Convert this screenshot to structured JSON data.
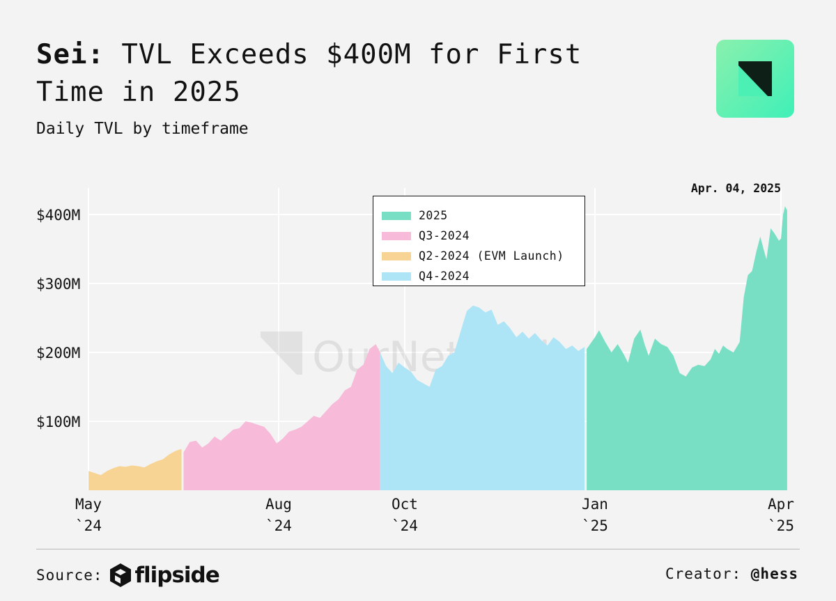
{
  "header": {
    "title_brand": "Sei:",
    "title_rest": "TVL Exceeds $400M for First Time in 2025",
    "subtitle": "Daily TVL by timeframe"
  },
  "watermark": "OurNetwork",
  "footer": {
    "source_label": "Source:",
    "source_name": "flipside",
    "creator_label": "Creator:",
    "creator_handle": "@hess"
  },
  "colors": {
    "q2_2024": "#f7d494",
    "q3_2024": "#f7bad9",
    "q4_2024": "#ade5f6",
    "y2025": "#78dfc5",
    "background": "#f3f3f3",
    "logo_green": "#5cf0b0"
  },
  "chart_data": {
    "type": "area",
    "title": "Sei: TVL Exceeds $400M for First Time in 2025",
    "subtitle": "Daily TVL by timeframe",
    "xlabel": "",
    "ylabel": "",
    "ylim": [
      0,
      420
    ],
    "y_ticks": [
      {
        "value": 100,
        "label": "$100M"
      },
      {
        "value": 200,
        "label": "$200M"
      },
      {
        "value": 300,
        "label": "$300M"
      },
      {
        "value": 400,
        "label": "$400M"
      }
    ],
    "x_ticks": [
      {
        "date": "2024-05-01",
        "label1": "May",
        "label2": "`24"
      },
      {
        "date": "2024-08-01",
        "label1": "Aug",
        "label2": "`24"
      },
      {
        "date": "2024-10-01",
        "label1": "Oct",
        "label2": "`24"
      },
      {
        "date": "2025-01-01",
        "label1": "Jan",
        "label2": "`25"
      },
      {
        "date": "2025-04-01",
        "label1": "Apr",
        "label2": "`25"
      }
    ],
    "x_range": [
      "2024-05-01",
      "2025-04-04"
    ],
    "grid": true,
    "legend_position": "top-center",
    "annotation": {
      "date": "2025-04-04",
      "text": "Apr. 04, 2025"
    },
    "series": [
      {
        "name": "2025",
        "color": "#78dfc5",
        "points": [
          [
            "2024-12-28",
            205
          ],
          [
            "2025-01-01",
            222
          ],
          [
            "2025-01-03",
            232
          ],
          [
            "2025-01-06",
            215
          ],
          [
            "2025-01-09",
            200
          ],
          [
            "2025-01-12",
            212
          ],
          [
            "2025-01-15",
            197
          ],
          [
            "2025-01-17",
            185
          ],
          [
            "2025-01-20",
            220
          ],
          [
            "2025-01-23",
            233
          ],
          [
            "2025-01-25",
            212
          ],
          [
            "2025-01-27",
            195
          ],
          [
            "2025-01-30",
            220
          ],
          [
            "2025-02-02",
            212
          ],
          [
            "2025-02-05",
            208
          ],
          [
            "2025-02-08",
            195
          ],
          [
            "2025-02-11",
            170
          ],
          [
            "2025-02-14",
            165
          ],
          [
            "2025-02-17",
            178
          ],
          [
            "2025-02-20",
            182
          ],
          [
            "2025-02-23",
            180
          ],
          [
            "2025-02-26",
            190
          ],
          [
            "2025-02-28",
            205
          ],
          [
            "2025-03-02",
            198
          ],
          [
            "2025-03-04",
            210
          ],
          [
            "2025-03-06",
            205
          ],
          [
            "2025-03-09",
            200
          ],
          [
            "2025-03-12",
            215
          ],
          [
            "2025-03-14",
            280
          ],
          [
            "2025-03-16",
            312
          ],
          [
            "2025-03-18",
            318
          ],
          [
            "2025-03-20",
            345
          ],
          [
            "2025-03-22",
            368
          ],
          [
            "2025-03-24",
            345
          ],
          [
            "2025-03-25",
            335
          ],
          [
            "2025-03-27",
            380
          ],
          [
            "2025-03-29",
            372
          ],
          [
            "2025-03-31",
            362
          ],
          [
            "2025-04-01",
            365
          ],
          [
            "2025-04-02",
            400
          ],
          [
            "2025-04-03",
            412
          ],
          [
            "2025-04-04",
            406
          ]
        ]
      },
      {
        "name": "Q3-2024",
        "color": "#f7bad9",
        "points": [
          [
            "2024-06-16",
            55
          ],
          [
            "2024-06-19",
            70
          ],
          [
            "2024-06-22",
            72
          ],
          [
            "2024-06-25",
            62
          ],
          [
            "2024-06-28",
            68
          ],
          [
            "2024-07-01",
            78
          ],
          [
            "2024-07-04",
            72
          ],
          [
            "2024-07-07",
            80
          ],
          [
            "2024-07-10",
            88
          ],
          [
            "2024-07-13",
            90
          ],
          [
            "2024-07-16",
            100
          ],
          [
            "2024-07-19",
            98
          ],
          [
            "2024-07-22",
            95
          ],
          [
            "2024-07-25",
            92
          ],
          [
            "2024-07-28",
            82
          ],
          [
            "2024-07-31",
            68
          ],
          [
            "2024-08-03",
            75
          ],
          [
            "2024-08-06",
            85
          ],
          [
            "2024-08-09",
            88
          ],
          [
            "2024-08-12",
            92
          ],
          [
            "2024-08-15",
            100
          ],
          [
            "2024-08-18",
            108
          ],
          [
            "2024-08-21",
            105
          ],
          [
            "2024-08-24",
            115
          ],
          [
            "2024-08-27",
            125
          ],
          [
            "2024-08-30",
            132
          ],
          [
            "2024-09-02",
            145
          ],
          [
            "2024-09-05",
            150
          ],
          [
            "2024-09-08",
            175
          ],
          [
            "2024-09-11",
            182
          ],
          [
            "2024-09-14",
            205
          ],
          [
            "2024-09-17",
            212
          ],
          [
            "2024-09-19",
            200
          ]
        ]
      },
      {
        "name": "Q2-2024 (EVM Launch)",
        "color": "#f7d494",
        "points": [
          [
            "2024-05-01",
            28
          ],
          [
            "2024-05-04",
            25
          ],
          [
            "2024-05-07",
            22
          ],
          [
            "2024-05-10",
            28
          ],
          [
            "2024-05-13",
            32
          ],
          [
            "2024-05-16",
            35
          ],
          [
            "2024-05-19",
            34
          ],
          [
            "2024-05-22",
            36
          ],
          [
            "2024-05-25",
            35
          ],
          [
            "2024-05-28",
            33
          ],
          [
            "2024-05-31",
            38
          ],
          [
            "2024-06-03",
            42
          ],
          [
            "2024-06-06",
            45
          ],
          [
            "2024-06-09",
            52
          ],
          [
            "2024-06-12",
            57
          ],
          [
            "2024-06-15",
            60
          ]
        ]
      },
      {
        "name": "Q4-2024",
        "color": "#ade5f6",
        "points": [
          [
            "2024-09-19",
            200
          ],
          [
            "2024-09-22",
            180
          ],
          [
            "2024-09-25",
            170
          ],
          [
            "2024-09-28",
            185
          ],
          [
            "2024-10-01",
            178
          ],
          [
            "2024-10-04",
            172
          ],
          [
            "2024-10-07",
            160
          ],
          [
            "2024-10-10",
            155
          ],
          [
            "2024-10-13",
            150
          ],
          [
            "2024-10-16",
            175
          ],
          [
            "2024-10-19",
            180
          ],
          [
            "2024-10-22",
            195
          ],
          [
            "2024-10-25",
            200
          ],
          [
            "2024-10-28",
            230
          ],
          [
            "2024-10-31",
            260
          ],
          [
            "2024-11-03",
            268
          ],
          [
            "2024-11-06",
            265
          ],
          [
            "2024-11-09",
            258
          ],
          [
            "2024-11-12",
            262
          ],
          [
            "2024-11-15",
            240
          ],
          [
            "2024-11-18",
            245
          ],
          [
            "2024-11-21",
            235
          ],
          [
            "2024-11-24",
            222
          ],
          [
            "2024-11-27",
            230
          ],
          [
            "2024-11-30",
            220
          ],
          [
            "2024-12-03",
            228
          ],
          [
            "2024-12-06",
            218
          ],
          [
            "2024-12-09",
            210
          ],
          [
            "2024-12-12",
            222
          ],
          [
            "2024-12-15",
            215
          ],
          [
            "2024-12-18",
            205
          ],
          [
            "2024-12-21",
            210
          ],
          [
            "2024-12-24",
            202
          ],
          [
            "2024-12-27",
            208
          ]
        ]
      }
    ]
  }
}
